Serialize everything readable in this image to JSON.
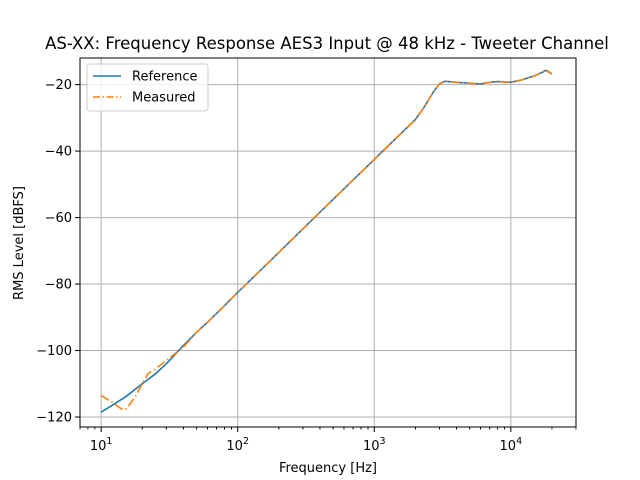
{
  "chart_data": {
    "type": "line",
    "title": "AS-XX: Frequency Response AES3 Input @ 48 kHz - Tweeter Channel",
    "xlabel": "Frequency [Hz]",
    "ylabel": "RMS Level [dBFS]",
    "xscale": "log",
    "xlim": [
      7,
      30000
    ],
    "ylim": [
      -123,
      -12
    ],
    "xticks": [
      {
        "value": 10,
        "base": "10",
        "exp": "1"
      },
      {
        "value": 100,
        "base": "10",
        "exp": "2"
      },
      {
        "value": 1000,
        "base": "10",
        "exp": "3"
      },
      {
        "value": 10000,
        "base": "10",
        "exp": "4"
      }
    ],
    "yticks": [
      {
        "value": -20,
        "label": "−20"
      },
      {
        "value": -40,
        "label": "−40"
      },
      {
        "value": -60,
        "label": "−60"
      },
      {
        "value": -80,
        "label": "−80"
      },
      {
        "value": -100,
        "label": "−100"
      },
      {
        "value": -120,
        "label": "−120"
      }
    ],
    "grid": true,
    "legend_position": "top-left",
    "series": [
      {
        "name": "Reference",
        "color": "#1f77b4",
        "style": "solid",
        "x": [
          10,
          12,
          15,
          20,
          25,
          30,
          40,
          50,
          60,
          80,
          100,
          200,
          500,
          1000,
          2000,
          2300,
          2700,
          3000,
          3300,
          4000,
          5000,
          6000,
          7000,
          8000,
          10000,
          12000,
          15000,
          17000,
          18000,
          20000
        ],
        "y": [
          -118.5,
          -116.5,
          -114,
          -110,
          -107,
          -104,
          -98.5,
          -94.5,
          -91.5,
          -86.5,
          -82.5,
          -70.5,
          -54.5,
          -42.5,
          -30.5,
          -27,
          -22.3,
          -19.8,
          -19,
          -19.3,
          -19.6,
          -19.8,
          -19.3,
          -19.1,
          -19.3,
          -18.6,
          -17.3,
          -16.3,
          -15.7,
          -16.8
        ]
      },
      {
        "name": "Measured",
        "color": "#ff7f0e",
        "style": "dashdot",
        "x": [
          10,
          12,
          14,
          15,
          16,
          18,
          20,
          22,
          25,
          30,
          40,
          50,
          60,
          80,
          100,
          200,
          500,
          1000,
          2000,
          2300,
          2700,
          3000,
          3300,
          4000,
          5000,
          6000,
          7000,
          8000,
          10000,
          12000,
          15000,
          17000,
          18000,
          20000
        ],
        "y": [
          -113.5,
          -115.5,
          -117.5,
          -117.8,
          -116.5,
          -113.5,
          -110,
          -107,
          -105.5,
          -103,
          -99,
          -94.5,
          -91.5,
          -86.5,
          -82.5,
          -70.5,
          -54.5,
          -42.5,
          -30.5,
          -27,
          -22.3,
          -19.8,
          -19,
          -19.3,
          -19.6,
          -19.8,
          -19.3,
          -19.1,
          -19.3,
          -18.6,
          -17.3,
          -16.3,
          -15.5,
          -16.8
        ]
      }
    ]
  }
}
